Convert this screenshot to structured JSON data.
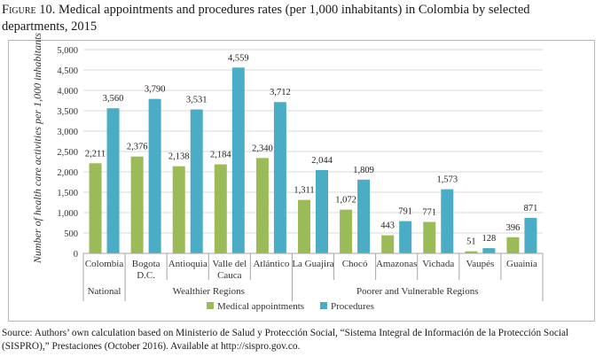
{
  "figure": {
    "label": "Figure 10.",
    "title": "Medical appointments and procedures rates (per 1,000 inhabitants) in Colombia by selected departments, 2015",
    "source": "Source: Authors’ own calculation based on Ministerio de Salud y Protección Social, “Sistema Integral de Información de la Protección Social (SISPRO),” Prestaciones (October 2016). Available at http://sispro.gov.co."
  },
  "chart_data": {
    "type": "bar",
    "ylabel": "Number of health care activities per 1,000 inhabitants",
    "xlabel": "",
    "ylim": [
      0,
      5000
    ],
    "yticks": [
      "0",
      "500",
      "1,000",
      "1,500",
      "2,000",
      "2,500",
      "3,000",
      "3,500",
      "4,000",
      "4,500",
      "5,000"
    ],
    "grid": true,
    "legend_position": "bottom",
    "categories": [
      [
        "Colombia"
      ],
      [
        "Bogota",
        "D.C."
      ],
      [
        "Antioquia"
      ],
      [
        "Valle del",
        "Cauca"
      ],
      [
        "Atlántico"
      ],
      [
        "La Guajira"
      ],
      [
        "Chocó"
      ],
      [
        "Amazonas"
      ],
      [
        "Vichada"
      ],
      [
        "Vaupés"
      ],
      [
        "Guainía"
      ]
    ],
    "groups": [
      {
        "label": "National",
        "count": 1
      },
      {
        "label": "Wealthier Regions",
        "count": 4
      },
      {
        "label": "Poorer and Vulnerable Regions",
        "count": 6
      }
    ],
    "series": [
      {
        "name": "Medical appointments",
        "color": "#9bbb59",
        "values": [
          2211,
          2376,
          2138,
          2184,
          2340,
          1311,
          1072,
          443,
          771,
          51,
          396
        ],
        "labels": [
          "2,211",
          "2,376",
          "2,138",
          "2,184",
          "2,340",
          "1,311",
          "1,072",
          "443",
          "771",
          "51",
          "396"
        ]
      },
      {
        "name": "Procedures",
        "color": "#4bacc6",
        "values": [
          3560,
          3790,
          3531,
          4559,
          3712,
          2044,
          1809,
          791,
          1573,
          128,
          871
        ],
        "labels": [
          "3,560",
          "3,790",
          "3,531",
          "4,559",
          "3,712",
          "2,044",
          "1,809",
          "791",
          "1,573",
          "128",
          "871"
        ]
      }
    ]
  }
}
